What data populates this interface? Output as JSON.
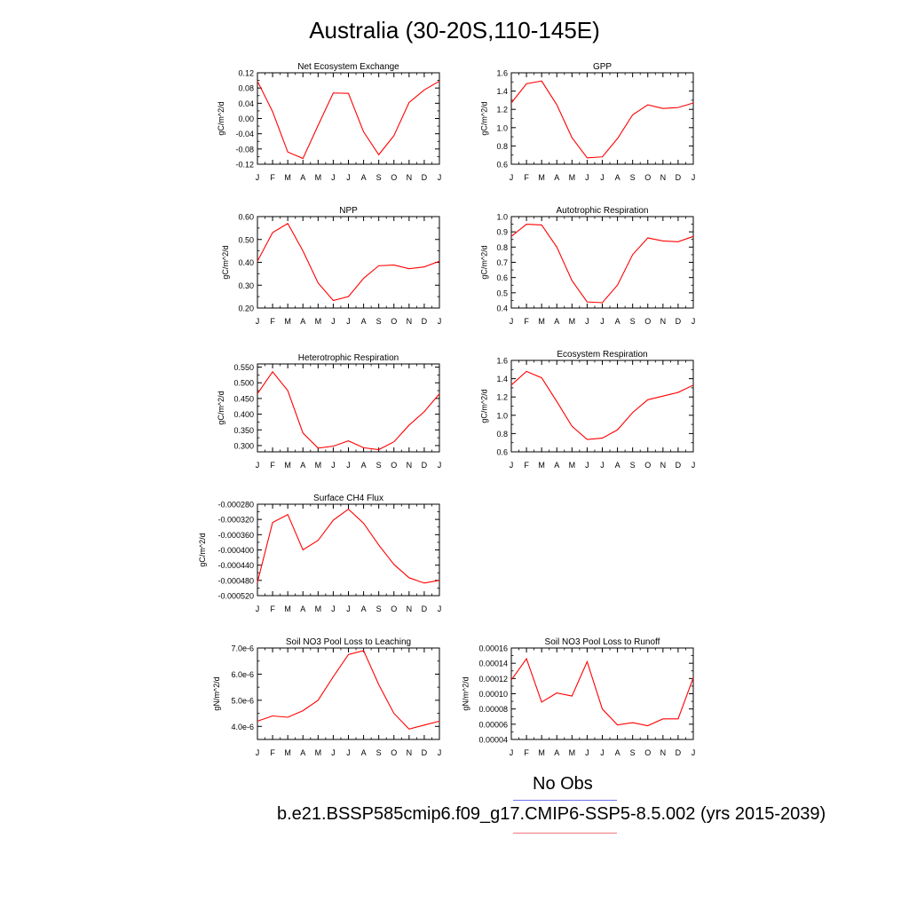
{
  "title": "Australia (30-20S,110-145E)",
  "legend": {
    "obs_label": "No Obs",
    "case_label": "b.e21.BSSP585cmip6.f09_g17.CMIP6-SSP5-8.5.002 (yrs 2015-2039)"
  },
  "colors": {
    "model_line": "#ff0000",
    "obs_line": "#6e74e8",
    "case_underline": "#f0797c"
  },
  "chart_data": [
    {
      "type": "line",
      "title": "Net Ecosystem Exchange",
      "ylabel": "gC/m^2/d",
      "categories": [
        "J",
        "F",
        "M",
        "A",
        "M",
        "J",
        "J",
        "A",
        "S",
        "O",
        "N",
        "D",
        "J"
      ],
      "yticks": [
        -0.12,
        -0.08,
        -0.04,
        0.0,
        0.04,
        0.08,
        0.12
      ],
      "ytick_labels": [
        "-0.12",
        "-0.08",
        "-0.04",
        "0.00",
        "0.04",
        "0.08",
        "0.12"
      ],
      "ylim": [
        -0.12,
        0.12
      ],
      "values": [
        0.098,
        0.018,
        -0.088,
        -0.105,
        -0.018,
        0.067,
        0.066,
        -0.035,
        -0.095,
        -0.045,
        0.042,
        0.075,
        0.098
      ]
    },
    {
      "type": "line",
      "title": "GPP",
      "ylabel": "gC/m^2/d",
      "categories": [
        "J",
        "F",
        "M",
        "A",
        "M",
        "J",
        "J",
        "A",
        "S",
        "O",
        "N",
        "D",
        "J"
      ],
      "yticks": [
        0.6,
        0.8,
        1.0,
        1.2,
        1.4,
        1.6
      ],
      "ytick_labels": [
        "0.6",
        "0.8",
        "1.0",
        "1.2",
        "1.4",
        "1.6"
      ],
      "ylim": [
        0.6,
        1.6
      ],
      "values": [
        1.27,
        1.48,
        1.51,
        1.25,
        0.89,
        0.67,
        0.68,
        0.88,
        1.14,
        1.25,
        1.21,
        1.22,
        1.27
      ]
    },
    {
      "type": "line",
      "title": "NPP",
      "ylabel": "gC/m^2/d",
      "categories": [
        "J",
        "F",
        "M",
        "A",
        "M",
        "J",
        "J",
        "A",
        "S",
        "O",
        "N",
        "D",
        "J"
      ],
      "yticks": [
        0.2,
        0.3,
        0.4,
        0.5,
        0.6
      ],
      "ytick_labels": [
        "0.20",
        "0.30",
        "0.40",
        "0.50",
        "0.60"
      ],
      "ylim": [
        0.2,
        0.6
      ],
      "values": [
        0.405,
        0.53,
        0.57,
        0.45,
        0.31,
        0.233,
        0.25,
        0.33,
        0.385,
        0.388,
        0.372,
        0.38,
        0.405
      ]
    },
    {
      "type": "line",
      "title": "Autotrophic Respiration",
      "ylabel": "gC/m^2/d",
      "categories": [
        "J",
        "F",
        "M",
        "A",
        "M",
        "J",
        "J",
        "A",
        "S",
        "O",
        "N",
        "D",
        "J"
      ],
      "yticks": [
        0.4,
        0.5,
        0.6,
        0.7,
        0.8,
        0.9,
        1.0
      ],
      "ytick_labels": [
        "0.4",
        "0.5",
        "0.6",
        "0.7",
        "0.8",
        "0.9",
        "1.0"
      ],
      "ylim": [
        0.4,
        1.0
      ],
      "values": [
        0.87,
        0.95,
        0.945,
        0.8,
        0.58,
        0.44,
        0.435,
        0.55,
        0.75,
        0.86,
        0.84,
        0.835,
        0.87
      ]
    },
    {
      "type": "line",
      "title": "Heterotrophic Respiration",
      "ylabel": "gC/m^2/d",
      "categories": [
        "J",
        "F",
        "M",
        "A",
        "M",
        "J",
        "J",
        "A",
        "S",
        "O",
        "N",
        "D",
        "J"
      ],
      "yticks": [
        0.3,
        0.35,
        0.4,
        0.45,
        0.5,
        0.55
      ],
      "ytick_labels": [
        "0.300",
        "0.350",
        "0.400",
        "0.450",
        "0.500",
        "0.550"
      ],
      "ylim": [
        0.28,
        0.56
      ],
      "values": [
        0.465,
        0.535,
        0.475,
        0.34,
        0.292,
        0.298,
        0.315,
        0.293,
        0.287,
        0.312,
        0.365,
        0.408,
        0.465
      ]
    },
    {
      "type": "line",
      "title": "Ecosystem Respiration",
      "ylabel": "gC/m^2/d",
      "categories": [
        "J",
        "F",
        "M",
        "A",
        "M",
        "J",
        "J",
        "A",
        "S",
        "O",
        "N",
        "D",
        "J"
      ],
      "yticks": [
        0.6,
        0.8,
        1.0,
        1.2,
        1.4,
        1.6
      ],
      "ytick_labels": [
        "0.6",
        "0.8",
        "1.0",
        "1.2",
        "1.4",
        "1.6"
      ],
      "ylim": [
        0.6,
        1.6
      ],
      "values": [
        1.33,
        1.48,
        1.41,
        1.15,
        0.88,
        0.735,
        0.75,
        0.84,
        1.03,
        1.17,
        1.21,
        1.25,
        1.33
      ]
    },
    {
      "type": "line",
      "title": "Surface CH4 Flux",
      "ylabel": "gC/m^2/d",
      "categories": [
        "J",
        "F",
        "M",
        "A",
        "M",
        "J",
        "J",
        "A",
        "S",
        "O",
        "N",
        "D",
        "J"
      ],
      "yticks": [
        -0.00052,
        -0.00048,
        -0.00044,
        -0.0004,
        -0.00036,
        -0.00032,
        -0.00028
      ],
      "ytick_labels": [
        "-0.000520",
        "-0.000480",
        "-0.000440",
        "-0.000400",
        "-0.000360",
        "-0.000320",
        "-0.000280"
      ],
      "ylim": [
        -0.00052,
        -0.00028
      ],
      "values": [
        -0.000485,
        -0.000328,
        -0.000307,
        -0.0004,
        -0.000375,
        -0.000322,
        -0.000293,
        -0.00033,
        -0.000387,
        -0.000438,
        -0.000473,
        -0.000487,
        -0.00048
      ]
    },
    {
      "type": "line",
      "title": "Soil NO3 Pool Loss to Leaching",
      "ylabel": "gN/m^2/d",
      "categories": [
        "J",
        "F",
        "M",
        "A",
        "M",
        "J",
        "J",
        "A",
        "S",
        "O",
        "N",
        "D",
        "J"
      ],
      "yticks": [
        4e-06,
        5e-06,
        6e-06,
        7e-06
      ],
      "ytick_labels": [
        "4.0e-6",
        "5.0e-6",
        "6.0e-6",
        "7.0e-6"
      ],
      "ylim": [
        3.5e-06,
        7e-06
      ],
      "values": [
        4.2e-06,
        4.4e-06,
        4.35e-06,
        4.6e-06,
        5e-06,
        5.9e-06,
        6.75e-06,
        6.9e-06,
        5.6e-06,
        4.5e-06,
        3.9e-06,
        4.05e-06,
        4.2e-06
      ]
    },
    {
      "type": "line",
      "title": "Soil NO3 Pool Loss to Runoff",
      "ylabel": "gN/m^2/d",
      "categories": [
        "J",
        "F",
        "M",
        "A",
        "M",
        "J",
        "J",
        "A",
        "S",
        "O",
        "N",
        "D",
        "J"
      ],
      "yticks": [
        4e-05,
        6e-05,
        8e-05,
        0.0001,
        0.00012,
        0.00014,
        0.00016
      ],
      "ytick_labels": [
        "0.00004",
        "0.00006",
        "0.00008",
        "0.00010",
        "0.00012",
        "0.00014",
        "0.00016"
      ],
      "ylim": [
        4e-05,
        0.00016
      ],
      "values": [
        0.000118,
        0.000146,
        8.9e-05,
        0.000101,
        9.7e-05,
        0.000142,
        8e-05,
        5.9e-05,
        6.2e-05,
        5.8e-05,
        6.7e-05,
        6.7e-05,
        0.000121
      ]
    }
  ]
}
